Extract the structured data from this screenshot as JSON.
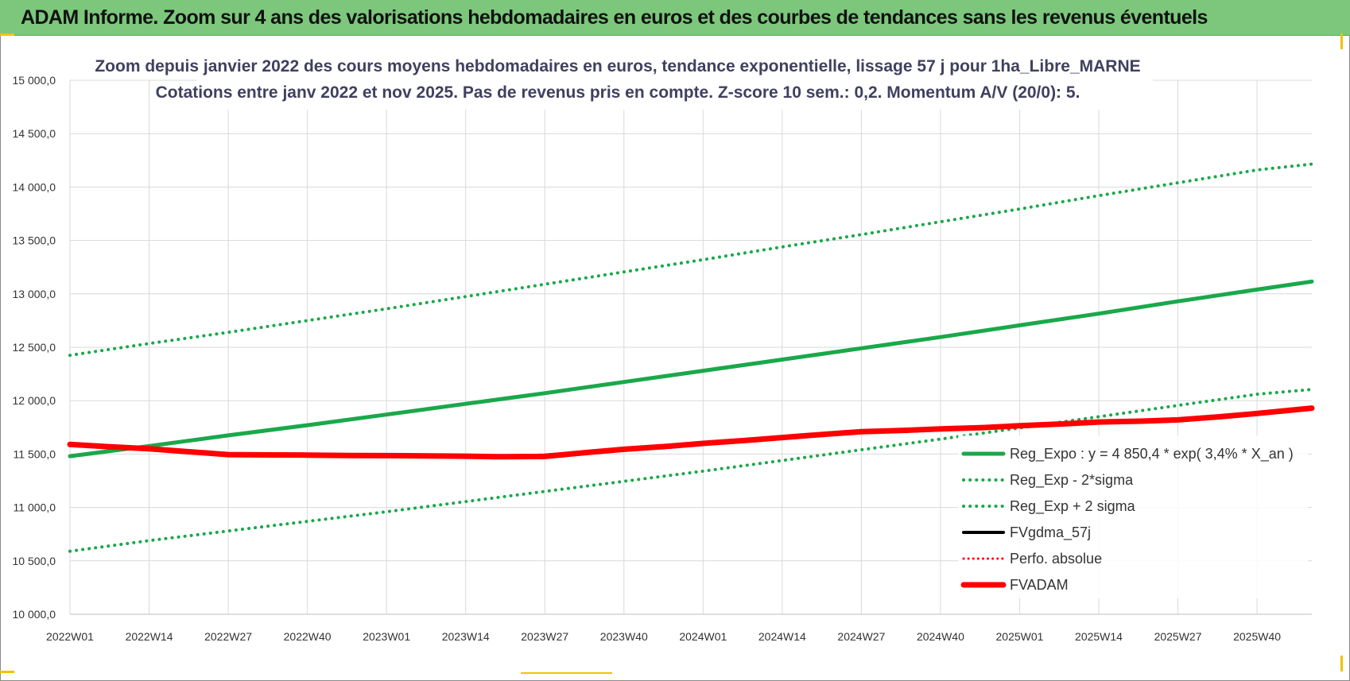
{
  "banner": {
    "title": "ADAM Informe. Zoom sur 4 ans des valorisations hebdomadaires en euros et des courbes de tendances sans les revenus éventuels",
    "background": "#7cc77c"
  },
  "chart_data": {
    "type": "line",
    "title_lines": [
      "Zoom depuis janvier 2022 des cours moyens hebdomadaires en euros, tendance exponentielle, lissage 57 j pour 1ha_Libre_MARNE",
      "Cotations entre janv 2022 et nov 2025. Pas de revenus pris en compte. Z-score 10 sem.: 0,2. Momentum A/V (20/0): 5."
    ],
    "xlabel": "",
    "ylabel": "",
    "ylim": [
      10000,
      15000
    ],
    "yticks": [
      10000,
      10500,
      11000,
      11500,
      12000,
      12500,
      13000,
      13500,
      14000,
      14500,
      15000
    ],
    "ytick_labels": [
      "10 000,0",
      "10 500,0",
      "11 000,0",
      "11 500,0",
      "12 000,0",
      "12 500,0",
      "13 000,0",
      "13 500,0",
      "14 000,0",
      "14 500,0",
      "15 000,0"
    ],
    "x_categories": [
      "2022W01",
      "2022W14",
      "2022W27",
      "2022W40",
      "2023W01",
      "2023W14",
      "2023W27",
      "2023W40",
      "2024W01",
      "2024W14",
      "2024W27",
      "2024W40",
      "2025W01",
      "2025W14",
      "2025W27",
      "2025W40"
    ],
    "x_range_weeks": [
      0,
      204
    ],
    "grid": true,
    "legend_position": "bottom-right",
    "series": [
      {
        "name": "Reg_Expo : y = 4 850,4 * exp( 3,4% *  X_an )",
        "color": "#1aa84a",
        "style": "solid",
        "width": 5,
        "x": [
          0,
          13,
          26,
          39,
          52,
          65,
          78,
          91,
          104,
          117,
          130,
          143,
          156,
          169,
          182,
          195,
          204
        ],
        "values": [
          11480,
          11575,
          11675,
          11770,
          11870,
          11970,
          12070,
          12175,
          12280,
          12385,
          12490,
          12595,
          12705,
          12815,
          12930,
          13040,
          13115
        ]
      },
      {
        "name": "Reg_Exp - 2*sigma",
        "color": "#1aa84a",
        "style": "dotted",
        "width": 4,
        "x": [
          0,
          13,
          26,
          39,
          52,
          65,
          78,
          91,
          104,
          117,
          130,
          143,
          156,
          169,
          182,
          195,
          204
        ],
        "values": [
          10590,
          10690,
          10780,
          10870,
          10960,
          11055,
          11150,
          11245,
          11340,
          11440,
          11540,
          11640,
          11745,
          11850,
          11955,
          12060,
          12105
        ]
      },
      {
        "name": "Reg_Exp + 2 sigma",
        "color": "#1aa84a",
        "style": "dotted",
        "width": 4,
        "x": [
          0,
          13,
          26,
          39,
          52,
          65,
          78,
          91,
          104,
          117,
          130,
          143,
          156,
          169,
          182,
          195,
          204
        ],
        "values": [
          12425,
          12535,
          12640,
          12750,
          12860,
          12975,
          13090,
          13205,
          13320,
          13440,
          13555,
          13675,
          13795,
          13920,
          14040,
          14160,
          14215
        ]
      },
      {
        "name": "FVgdma_57j",
        "color": "#000000",
        "style": "solid",
        "width": 4,
        "x": [
          0,
          13,
          26,
          39,
          52,
          65,
          70,
          78,
          91,
          104,
          117,
          130,
          143,
          156,
          169,
          182,
          195,
          204
        ],
        "values": [
          11590,
          11550,
          11495,
          11490,
          11485,
          11480,
          11480,
          11490,
          11545,
          11600,
          11655,
          11710,
          11735,
          11765,
          11800,
          11820,
          11880,
          11930
        ]
      },
      {
        "name": "Perfo. absolue",
        "color": "#ff0000",
        "style": "dotted",
        "width": 3,
        "x": [
          0,
          13,
          26,
          39,
          52,
          65,
          70,
          78,
          91,
          104,
          117,
          130,
          143,
          156,
          169,
          182,
          195,
          204
        ],
        "values": [
          11590,
          11550,
          11495,
          11490,
          11485,
          11480,
          11475,
          11485,
          11545,
          11600,
          11655,
          11710,
          11735,
          11765,
          11800,
          11820,
          11880,
          11930
        ]
      },
      {
        "name": "FVADAM",
        "color": "#ff0000",
        "style": "solid",
        "width": 7,
        "x": [
          0,
          6,
          13,
          20,
          26,
          33,
          39,
          46,
          52,
          59,
          65,
          70,
          78,
          85,
          91,
          98,
          104,
          111,
          117,
          124,
          130,
          137,
          143,
          150,
          156,
          163,
          169,
          176,
          182,
          189,
          195,
          204
        ],
        "values": [
          11590,
          11570,
          11550,
          11520,
          11495,
          11492,
          11490,
          11486,
          11485,
          11483,
          11480,
          11475,
          11478,
          11515,
          11545,
          11572,
          11600,
          11628,
          11655,
          11685,
          11710,
          11722,
          11735,
          11748,
          11765,
          11782,
          11800,
          11808,
          11820,
          11850,
          11880,
          11930
        ]
      }
    ]
  }
}
